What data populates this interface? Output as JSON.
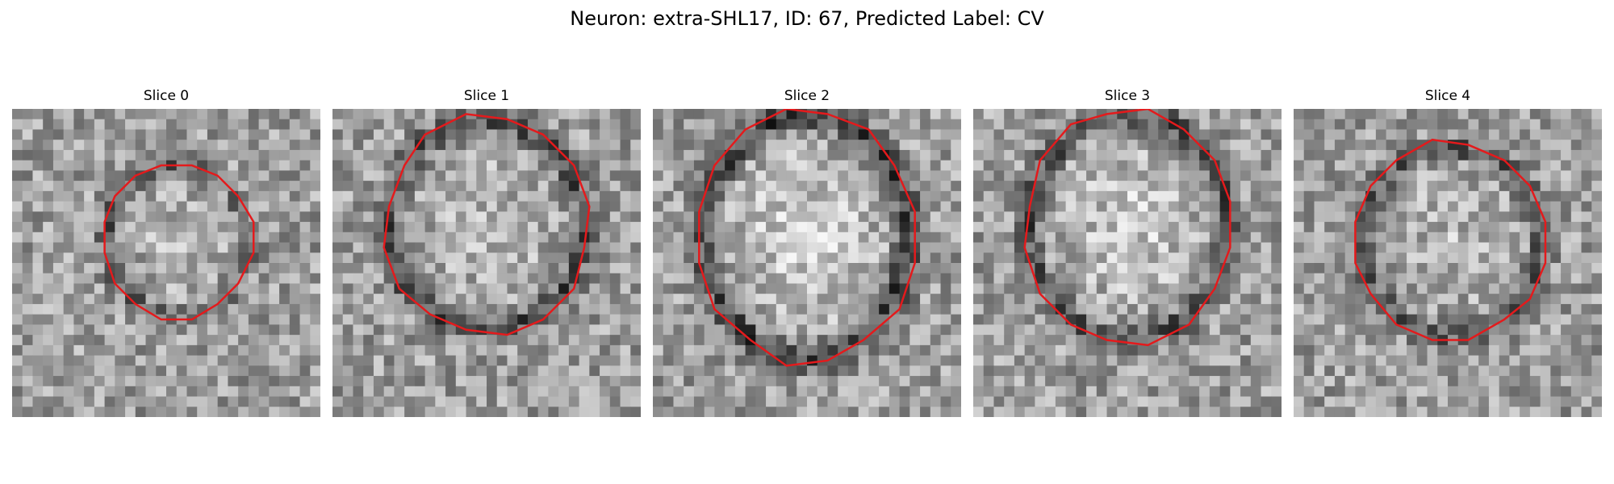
{
  "figure": {
    "title": "Neuron: extra-SHL17, ID: 67, Predicted Label: CV"
  },
  "colors": {
    "background": "#ffffff",
    "contour": "#e41a1c",
    "text": "#000000"
  },
  "panels": [
    {
      "title": "Slice 0"
    },
    {
      "title": "Slice 1"
    },
    {
      "title": "Slice 2"
    },
    {
      "title": "Slice 3"
    },
    {
      "title": "Slice 4"
    }
  ]
}
